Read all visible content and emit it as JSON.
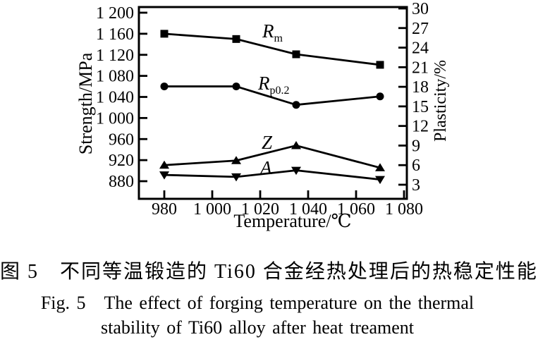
{
  "figure": {
    "caption_zh": "图 5　不同等温锻造的 Ti60 合金经热处理后的热稳定性能",
    "caption_en_line1": "Fig. 5　The effect of forging temperature on the thermal",
    "caption_en_line2": "stability of Ti60 alloy after heat treament"
  },
  "chart_data": {
    "type": "line",
    "title": "",
    "xlabel": "Temperature/℃",
    "ylabel_left": "Strength/MPa",
    "ylabel_right": "Plasticity/%",
    "grid": false,
    "legend_position": "inline-annotations",
    "x_tick_labels": [
      "980",
      "1 000",
      "1 020",
      "1 040",
      "1 060",
      "1 080"
    ],
    "x_tick_values": [
      980,
      1000,
      1020,
      1040,
      1060,
      1080
    ],
    "left_tick_labels": [
      "880",
      "920",
      "960",
      "1 000",
      "1 040",
      "1 080",
      "1 120",
      "1 160",
      "1 200"
    ],
    "left_tick_values": [
      880,
      920,
      960,
      1000,
      1040,
      1080,
      1120,
      1160,
      1200
    ],
    "right_tick_labels": [
      "3",
      "6",
      "9",
      "12",
      "15",
      "18",
      "21",
      "24",
      "27",
      "30"
    ],
    "right_tick_values": [
      3,
      6,
      9,
      12,
      15,
      18,
      21,
      24,
      27,
      30
    ],
    "xlim": [
      969,
      1081
    ],
    "ylim_left": [
      847,
      1211
    ],
    "ylim_right": [
      0.8,
      30.2
    ],
    "x": [
      980,
      1010,
      1035,
      1070
    ],
    "series": [
      {
        "name": "Rm",
        "label": "R",
        "label_sub": "m",
        "axis": "left",
        "marker": "square",
        "values": [
          1160,
          1150,
          1121,
          1101
        ]
      },
      {
        "name": "Rp0.2",
        "label": "R",
        "label_sub": "p0.2",
        "axis": "left",
        "marker": "circle",
        "values": [
          1060,
          1060,
          1025,
          1041
        ]
      },
      {
        "name": "Z",
        "label": "Z",
        "label_sub": "",
        "axis": "right",
        "marker": "triangle-up",
        "values": [
          6.0,
          6.7,
          9.0,
          5.6
        ]
      },
      {
        "name": "A",
        "label": "A",
        "label_sub": "",
        "axis": "right",
        "marker": "triangle-down",
        "values": [
          4.5,
          4.2,
          5.2,
          3.8
        ]
      }
    ],
    "color": "#000000",
    "background": "#ffffff"
  }
}
